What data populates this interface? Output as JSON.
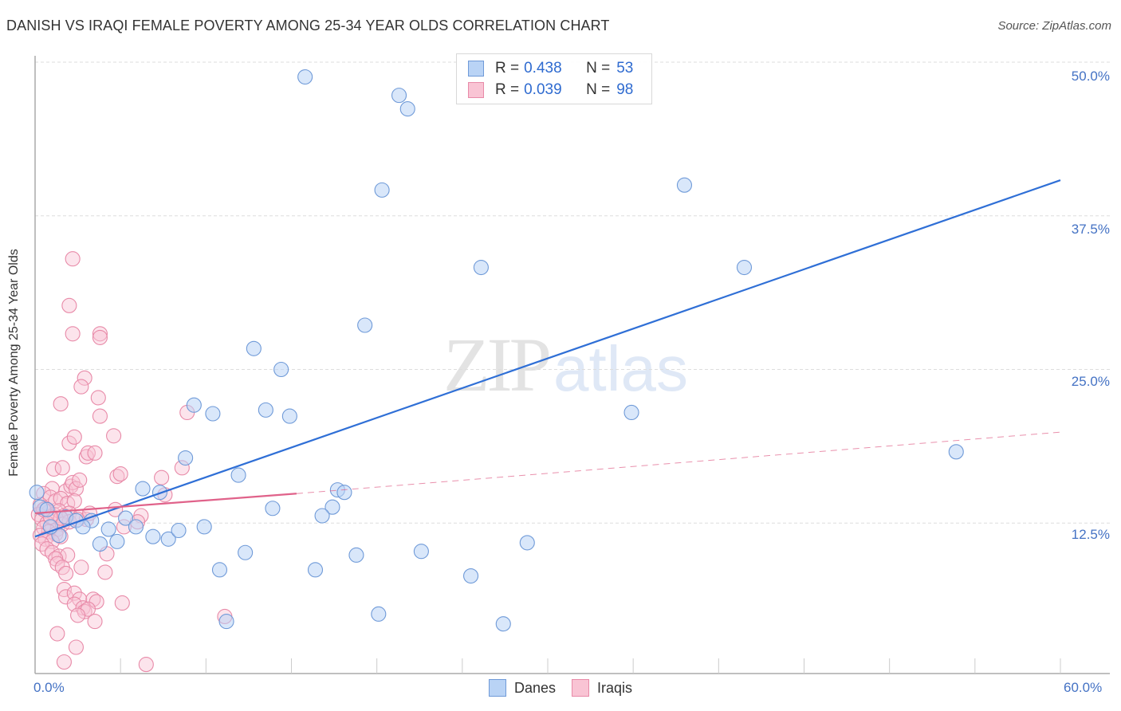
{
  "header": {
    "title": "DANISH VS IRAQI FEMALE POVERTY AMONG 25-34 YEAR OLDS CORRELATION CHART",
    "source": "Source: ZipAtlas.com"
  },
  "watermark": {
    "zip": "ZIP",
    "atlas": "atlas"
  },
  "stats_box": {
    "rows": [
      {
        "series": "Danes",
        "r_label": "R =",
        "r_value": "0.438",
        "n_label": "N =",
        "n_value": "53",
        "color": "#b9d3f5",
        "border": "#6f9ad8"
      },
      {
        "series": "Iraqis",
        "r_label": "R =",
        "r_value": "0.039",
        "n_label": "N =",
        "n_value": "98",
        "color": "#f9c4d4",
        "border": "#e88aa8"
      }
    ]
  },
  "axes": {
    "y_label": "Female Poverty Among 25-34 Year Olds",
    "y_ticks": [
      "50.0%",
      "37.5%",
      "25.0%",
      "12.5%"
    ],
    "x_ticks": [
      "0.0%",
      "60.0%"
    ]
  },
  "legend": {
    "items": [
      {
        "label": "Danes",
        "color": "#b9d3f5",
        "border": "#6f9ad8"
      },
      {
        "label": "Iraqis",
        "color": "#f9c4d4",
        "border": "#e88aa8"
      }
    ]
  },
  "colors": {
    "danes_line": "#2f6fd6",
    "iraqis_line": "#e0628a",
    "tick_text": "#4472c4",
    "grid": "#dddddd"
  },
  "chart_data": {
    "type": "scatter",
    "title": "DANISH VS IRAQI FEMALE POVERTY AMONG 25-34 YEAR OLDS CORRELATION CHART",
    "xlabel": "",
    "ylabel": "Female Poverty Among 25-34 Year Olds",
    "xlim": [
      0,
      60
    ],
    "ylim": [
      0,
      52
    ],
    "y_ticks": [
      12.5,
      25.0,
      37.5,
      50.0
    ],
    "x_ticks": [
      0,
      60
    ],
    "grid": true,
    "legend_position": "bottom",
    "series": [
      {
        "name": "Danes",
        "R": 0.438,
        "N": 53,
        "trend": {
          "x0": 0,
          "y0": 11.4,
          "x1": 60,
          "y1": 40.4,
          "style": "solid"
        },
        "points": [
          [
            15.8,
            48.8
          ],
          [
            21.3,
            47.3
          ],
          [
            21.8,
            46.2
          ],
          [
            20.3,
            39.6
          ],
          [
            38.0,
            40.0
          ],
          [
            26.1,
            33.3
          ],
          [
            41.5,
            33.3
          ],
          [
            19.3,
            28.6
          ],
          [
            12.8,
            26.7
          ],
          [
            14.4,
            25.0
          ],
          [
            9.3,
            22.1
          ],
          [
            10.4,
            21.4
          ],
          [
            13.5,
            21.7
          ],
          [
            14.9,
            21.2
          ],
          [
            34.9,
            21.5
          ],
          [
            8.8,
            17.8
          ],
          [
            11.9,
            16.4
          ],
          [
            6.3,
            15.3
          ],
          [
            7.3,
            15.0
          ],
          [
            17.7,
            15.2
          ],
          [
            18.1,
            15.0
          ],
          [
            13.9,
            13.7
          ],
          [
            17.4,
            13.8
          ],
          [
            16.8,
            13.1
          ],
          [
            0.1,
            15.0
          ],
          [
            0.3,
            13.8
          ],
          [
            1.8,
            13.0
          ],
          [
            3.3,
            12.7
          ],
          [
            2.4,
            12.7
          ],
          [
            2.8,
            12.2
          ],
          [
            4.3,
            12.0
          ],
          [
            5.3,
            12.9
          ],
          [
            5.9,
            12.2
          ],
          [
            6.9,
            11.4
          ],
          [
            7.8,
            11.2
          ],
          [
            8.4,
            11.9
          ],
          [
            9.9,
            12.2
          ],
          [
            3.8,
            10.8
          ],
          [
            4.8,
            11.0
          ],
          [
            1.4,
            11.5
          ],
          [
            12.3,
            10.1
          ],
          [
            18.8,
            9.9
          ],
          [
            22.6,
            10.2
          ],
          [
            28.8,
            10.9
          ],
          [
            10.8,
            8.7
          ],
          [
            16.4,
            8.7
          ],
          [
            25.5,
            8.2
          ],
          [
            20.1,
            5.1
          ],
          [
            11.2,
            4.5
          ],
          [
            27.4,
            4.3
          ],
          [
            53.9,
            18.3
          ],
          [
            0.7,
            13.6
          ],
          [
            0.9,
            12.2
          ]
        ]
      },
      {
        "name": "Iraqis",
        "R": 0.039,
        "N": 98,
        "trend": {
          "x0": 0,
          "y0": 13.3,
          "x1": 15.3,
          "y1": 14.9,
          "style": "solid",
          "extended_to": {
            "x": 60,
            "y": 19.9,
            "style": "dashed"
          }
        },
        "points": [
          [
            2.2,
            34.0
          ],
          [
            2.0,
            30.2
          ],
          [
            2.2,
            27.9
          ],
          [
            3.8,
            27.9
          ],
          [
            3.8,
            27.6
          ],
          [
            2.9,
            24.3
          ],
          [
            2.7,
            23.6
          ],
          [
            1.5,
            22.2
          ],
          [
            3.8,
            21.2
          ],
          [
            3.7,
            22.7
          ],
          [
            4.6,
            19.6
          ],
          [
            2.0,
            19.0
          ],
          [
            2.3,
            19.5
          ],
          [
            1.1,
            16.9
          ],
          [
            1.6,
            17.0
          ],
          [
            3.0,
            17.9
          ],
          [
            3.1,
            18.2
          ],
          [
            3.5,
            18.2
          ],
          [
            4.8,
            16.3
          ],
          [
            5.0,
            16.5
          ],
          [
            8.9,
            21.5
          ],
          [
            8.6,
            17.0
          ],
          [
            7.4,
            16.2
          ],
          [
            1.0,
            15.3
          ],
          [
            1.8,
            15.1
          ],
          [
            2.1,
            15.5
          ],
          [
            2.2,
            15.8
          ],
          [
            2.4,
            15.3
          ],
          [
            2.6,
            16.0
          ],
          [
            0.5,
            14.9
          ],
          [
            0.9,
            14.6
          ],
          [
            1.2,
            14.3
          ],
          [
            1.5,
            14.5
          ],
          [
            1.9,
            14.1
          ],
          [
            2.3,
            14.3
          ],
          [
            0.3,
            14.0
          ],
          [
            0.6,
            13.7
          ],
          [
            0.8,
            13.4
          ],
          [
            1.1,
            13.2
          ],
          [
            1.4,
            13.5
          ],
          [
            1.7,
            13.1
          ],
          [
            2.0,
            13.3
          ],
          [
            2.6,
            13.0
          ],
          [
            3.0,
            12.8
          ],
          [
            0.2,
            13.2
          ],
          [
            0.4,
            12.8
          ],
          [
            0.7,
            12.5
          ],
          [
            1.0,
            12.2
          ],
          [
            1.3,
            12.0
          ],
          [
            1.6,
            12.4
          ],
          [
            2.0,
            12.6
          ],
          [
            0.5,
            12.1
          ],
          [
            0.8,
            11.8
          ],
          [
            1.2,
            11.6
          ],
          [
            1.5,
            11.4
          ],
          [
            0.3,
            11.5
          ],
          [
            0.6,
            11.2
          ],
          [
            1.0,
            11.0
          ],
          [
            4.7,
            13.6
          ],
          [
            5.2,
            12.2
          ],
          [
            7.6,
            14.8
          ],
          [
            6.2,
            13.1
          ],
          [
            6.0,
            12.6
          ],
          [
            0.4,
            10.8
          ],
          [
            0.7,
            10.4
          ],
          [
            1.0,
            10.1
          ],
          [
            1.4,
            9.8
          ],
          [
            1.9,
            9.9
          ],
          [
            1.2,
            9.6
          ],
          [
            1.3,
            9.2
          ],
          [
            1.6,
            8.9
          ],
          [
            1.8,
            8.4
          ],
          [
            4.1,
            8.5
          ],
          [
            4.2,
            10.0
          ],
          [
            2.7,
            8.9
          ],
          [
            1.7,
            7.1
          ],
          [
            1.8,
            6.5
          ],
          [
            2.3,
            6.8
          ],
          [
            2.6,
            6.3
          ],
          [
            3.4,
            6.3
          ],
          [
            3.6,
            6.1
          ],
          [
            2.3,
            5.9
          ],
          [
            2.8,
            5.6
          ],
          [
            2.9,
            5.3
          ],
          [
            3.1,
            5.5
          ],
          [
            2.5,
            5.0
          ],
          [
            5.1,
            6.0
          ],
          [
            3.5,
            4.5
          ],
          [
            1.3,
            3.5
          ],
          [
            2.4,
            2.4
          ],
          [
            1.7,
            1.2
          ],
          [
            6.5,
            1.0
          ],
          [
            11.1,
            4.9
          ],
          [
            2.5,
            12.8
          ],
          [
            3.2,
            13.3
          ],
          [
            1.5,
            12.9
          ],
          [
            0.9,
            13.0
          ],
          [
            0.5,
            13.6
          ]
        ]
      }
    ]
  }
}
